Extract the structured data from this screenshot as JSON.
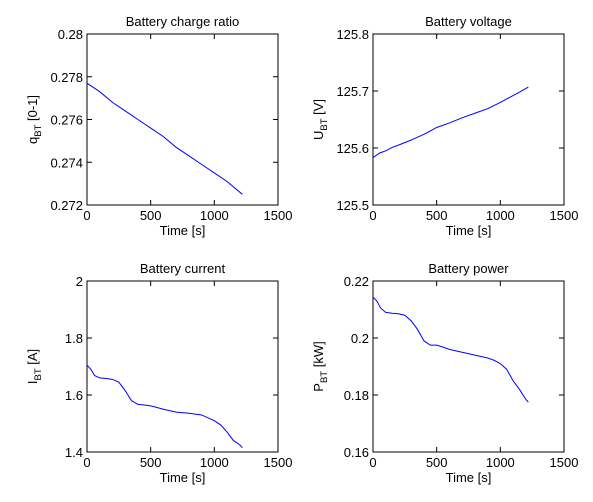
{
  "chart_data": [
    {
      "type": "line",
      "title": "Battery charge ratio",
      "xlabel": "Time [s]",
      "ylabel": {
        "main": "q",
        "sub": "BT",
        "rest": " [0-1]"
      },
      "xlim": [
        0,
        1500
      ],
      "ylim": [
        0.272,
        0.28
      ],
      "xticks": [
        0,
        500,
        1000,
        1500
      ],
      "yticks": [
        0.272,
        0.274,
        0.276,
        0.278,
        0.28
      ],
      "xtick_labels": [
        "0",
        "500",
        "1000",
        "1500"
      ],
      "ytick_labels": [
        "0.272",
        "0.274",
        "0.276",
        "0.278",
        "0.28"
      ],
      "grid": false,
      "series": [
        {
          "x": [
            0,
            100,
            200,
            300,
            400,
            500,
            600,
            700,
            800,
            900,
            1000,
            1100,
            1220
          ],
          "y": [
            0.2777,
            0.2773,
            0.2768,
            0.2764,
            0.276,
            0.2756,
            0.2752,
            0.2747,
            0.2743,
            0.2739,
            0.2735,
            0.2731,
            0.2725
          ],
          "color": "#0000ff"
        }
      ]
    },
    {
      "type": "line",
      "title": "Battery voltage",
      "xlabel": "Time [s]",
      "ylabel": {
        "main": "U",
        "sub": "BT",
        "rest": " [V]"
      },
      "xlim": [
        0,
        1500
      ],
      "ylim": [
        125.5,
        125.8
      ],
      "xticks": [
        0,
        500,
        1000,
        1500
      ],
      "yticks": [
        125.5,
        125.6,
        125.7,
        125.8
      ],
      "xtick_labels": [
        "0",
        "500",
        "1000",
        "1500"
      ],
      "ytick_labels": [
        "125.5",
        "125.6",
        "125.7",
        "125.8"
      ],
      "grid": false,
      "series": [
        {
          "x": [
            0,
            50,
            100,
            150,
            200,
            300,
            400,
            450,
            500,
            600,
            700,
            800,
            900,
            1000,
            1050,
            1100,
            1150,
            1220
          ],
          "y": [
            125.583,
            125.591,
            125.595,
            125.601,
            125.605,
            125.614,
            125.624,
            125.63,
            125.636,
            125.644,
            125.653,
            125.661,
            125.669,
            125.68,
            125.686,
            125.692,
            125.698,
            125.707
          ],
          "color": "#0000ff"
        }
      ]
    },
    {
      "type": "line",
      "title": "Battery current",
      "xlabel": "Time [s]",
      "ylabel": {
        "main": "I",
        "sub": "BT",
        "rest": " [A]"
      },
      "xlim": [
        0,
        1500
      ],
      "ylim": [
        1.4,
        2
      ],
      "xticks": [
        0,
        500,
        1000,
        1500
      ],
      "yticks": [
        1.4,
        1.6,
        1.8,
        2
      ],
      "xtick_labels": [
        "0",
        "500",
        "1000",
        "1500"
      ],
      "ytick_labels": [
        "1.4",
        "1.6",
        "1.8",
        "2"
      ],
      "grid": false,
      "series": [
        {
          "x": [
            0,
            30,
            60,
            100,
            150,
            200,
            250,
            300,
            350,
            400,
            450,
            500,
            550,
            600,
            700,
            800,
            900,
            950,
            1000,
            1050,
            1100,
            1150,
            1200,
            1220
          ],
          "y": [
            1.705,
            1.69,
            1.668,
            1.66,
            1.658,
            1.655,
            1.645,
            1.615,
            1.58,
            1.567,
            1.565,
            1.562,
            1.556,
            1.55,
            1.54,
            1.536,
            1.53,
            1.52,
            1.51,
            1.495,
            1.47,
            1.44,
            1.425,
            1.415
          ],
          "color": "#0000ff"
        }
      ]
    },
    {
      "type": "line",
      "title": "Battery power",
      "xlabel": "Time [s]",
      "ylabel": {
        "main": "P",
        "sub": "BT",
        "rest": " [kW]"
      },
      "xlim": [
        0,
        1500
      ],
      "ylim": [
        0.16,
        0.22
      ],
      "xticks": [
        0,
        500,
        1000,
        1500
      ],
      "yticks": [
        0.16,
        0.18,
        0.2,
        0.22
      ],
      "xtick_labels": [
        "0",
        "500",
        "1000",
        "1500"
      ],
      "ytick_labels": [
        "0.16",
        "0.18",
        "0.2",
        "0.22"
      ],
      "grid": false,
      "series": [
        {
          "x": [
            0,
            30,
            60,
            100,
            150,
            200,
            250,
            300,
            350,
            400,
            450,
            500,
            550,
            600,
            700,
            800,
            900,
            950,
            1000,
            1050,
            1100,
            1150,
            1200,
            1220
          ],
          "y": [
            0.2143,
            0.213,
            0.2105,
            0.209,
            0.2087,
            0.2085,
            0.208,
            0.206,
            0.203,
            0.199,
            0.1975,
            0.1975,
            0.1968,
            0.196,
            0.195,
            0.194,
            0.193,
            0.1922,
            0.191,
            0.189,
            0.185,
            0.182,
            0.1785,
            0.1775
          ],
          "color": "#0000ff"
        }
      ]
    }
  ]
}
